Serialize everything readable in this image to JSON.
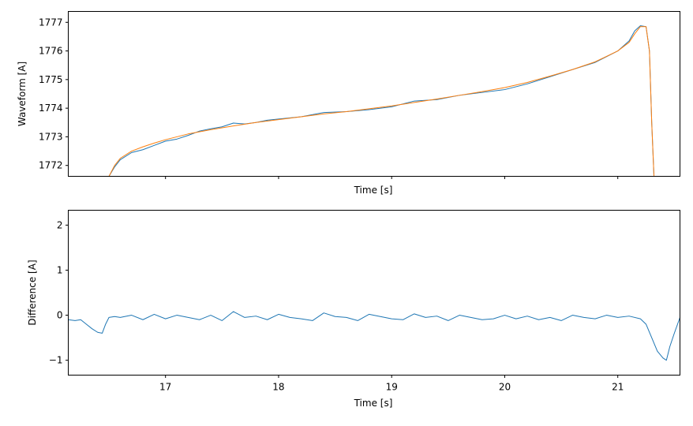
{
  "chart_data": [
    {
      "type": "line",
      "xlabel": "Time [s]",
      "ylabel": "Waveform [A]",
      "xlim": [
        16.14,
        21.55
      ],
      "ylim": [
        1771.62,
        1777.38
      ],
      "xticks": [
        17,
        18,
        19,
        20,
        21
      ],
      "xtick_labels_shown": false,
      "yticks": [
        1772,
        1773,
        1774,
        1775,
        1776,
        1777
      ],
      "ytick_labels": [
        "1772",
        "1773",
        "1774",
        "1775",
        "1776",
        "1777"
      ],
      "grid": false,
      "series": [
        {
          "color": "#1f77b4",
          "x": [
            16.5,
            16.55,
            16.6,
            16.7,
            16.8,
            16.9,
            17.0,
            17.1,
            17.2,
            17.3,
            17.4,
            17.5,
            17.6,
            17.7,
            17.8,
            17.9,
            18.0,
            18.2,
            18.4,
            18.6,
            18.8,
            19.0,
            19.2,
            19.4,
            19.6,
            19.8,
            20.0,
            20.2,
            20.4,
            20.6,
            20.8,
            21.0,
            21.1,
            21.15,
            21.2,
            21.25,
            21.28,
            21.3,
            21.32
          ],
          "y": [
            1771.62,
            1771.95,
            1772.2,
            1772.45,
            1772.55,
            1772.7,
            1772.85,
            1772.92,
            1773.05,
            1773.2,
            1773.28,
            1773.35,
            1773.48,
            1773.45,
            1773.5,
            1773.58,
            1773.62,
            1773.7,
            1773.85,
            1773.88,
            1773.95,
            1774.05,
            1774.25,
            1774.3,
            1774.45,
            1774.55,
            1774.65,
            1774.85,
            1775.1,
            1775.35,
            1775.6,
            1776.0,
            1776.35,
            1776.7,
            1776.88,
            1776.85,
            1776.0,
            1773.5,
            1771.62
          ]
        },
        {
          "color": "#ff7f0e",
          "x": [
            16.5,
            16.55,
            16.6,
            16.7,
            16.8,
            16.9,
            17.0,
            17.2,
            17.4,
            17.6,
            17.8,
            18.0,
            18.2,
            18.4,
            18.6,
            18.8,
            19.0,
            19.2,
            19.4,
            19.6,
            19.8,
            20.0,
            20.2,
            20.4,
            20.6,
            20.8,
            21.0,
            21.1,
            21.15,
            21.2,
            21.25,
            21.28,
            21.3,
            21.32
          ],
          "y": [
            1771.62,
            1772.0,
            1772.25,
            1772.5,
            1772.65,
            1772.78,
            1772.9,
            1773.1,
            1773.25,
            1773.38,
            1773.5,
            1773.6,
            1773.7,
            1773.8,
            1773.88,
            1773.98,
            1774.08,
            1774.2,
            1774.32,
            1774.45,
            1774.58,
            1774.72,
            1774.9,
            1775.12,
            1775.35,
            1775.62,
            1776.0,
            1776.3,
            1776.6,
            1776.85,
            1776.85,
            1776.0,
            1773.5,
            1771.62
          ]
        }
      ]
    },
    {
      "type": "line",
      "xlabel": "Time [s]",
      "ylabel": "Difference [A]",
      "xlim": [
        16.14,
        21.55
      ],
      "ylim": [
        -1.33,
        2.33
      ],
      "xticks": [
        17,
        18,
        19,
        20,
        21
      ],
      "xtick_labels": [
        "17",
        "18",
        "19",
        "20",
        "21"
      ],
      "yticks": [
        -1,
        0,
        1,
        2
      ],
      "ytick_labels": [
        "−1",
        "0",
        "1",
        "2"
      ],
      "grid": false,
      "series": [
        {
          "color": "#1f77b4",
          "x": [
            16.14,
            16.2,
            16.25,
            16.3,
            16.35,
            16.4,
            16.44,
            16.47,
            16.5,
            16.55,
            16.6,
            16.7,
            16.8,
            16.9,
            17.0,
            17.1,
            17.2,
            17.3,
            17.4,
            17.5,
            17.6,
            17.7,
            17.8,
            17.9,
            18.0,
            18.1,
            18.2,
            18.3,
            18.4,
            18.5,
            18.6,
            18.7,
            18.8,
            18.9,
            19.0,
            19.1,
            19.2,
            19.3,
            19.4,
            19.5,
            19.6,
            19.7,
            19.8,
            19.9,
            20.0,
            20.1,
            20.2,
            20.3,
            20.4,
            20.5,
            20.6,
            20.7,
            20.8,
            20.9,
            21.0,
            21.1,
            21.2,
            21.25,
            21.3,
            21.35,
            21.4,
            21.43,
            21.46,
            21.5,
            21.55
          ],
          "y": [
            -0.1,
            -0.12,
            -0.1,
            -0.2,
            -0.3,
            -0.38,
            -0.4,
            -0.2,
            -0.05,
            -0.03,
            -0.05,
            0.0,
            -0.1,
            0.02,
            -0.08,
            0.0,
            -0.05,
            -0.1,
            0.0,
            -0.12,
            0.08,
            -0.05,
            -0.02,
            -0.1,
            0.02,
            -0.05,
            -0.08,
            -0.12,
            0.05,
            -0.03,
            -0.05,
            -0.12,
            0.02,
            -0.03,
            -0.08,
            -0.1,
            0.03,
            -0.05,
            -0.02,
            -0.12,
            0.0,
            -0.05,
            -0.1,
            -0.08,
            0.0,
            -0.08,
            -0.02,
            -0.1,
            -0.05,
            -0.12,
            0.0,
            -0.05,
            -0.08,
            0.0,
            -0.05,
            -0.02,
            -0.08,
            -0.2,
            -0.5,
            -0.8,
            -0.95,
            -1.0,
            -0.7,
            -0.4,
            -0.05
          ]
        }
      ]
    }
  ]
}
